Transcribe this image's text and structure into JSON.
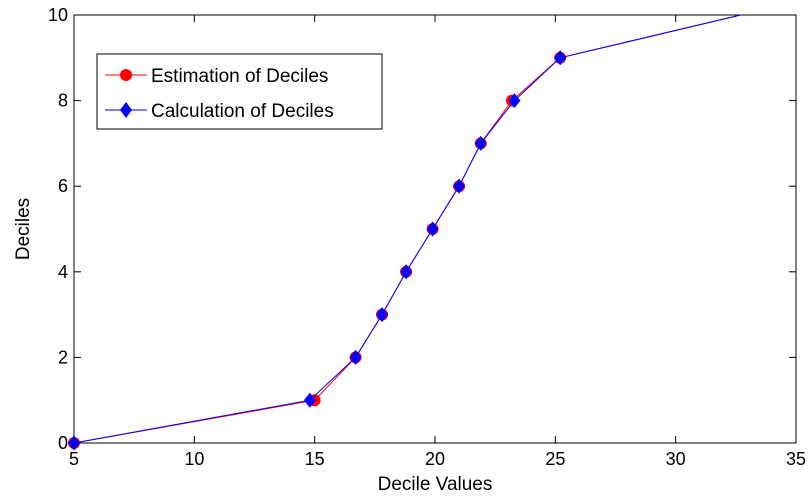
{
  "chart_data": {
    "type": "line",
    "title": "",
    "xlabel": "Decile Values",
    "ylabel": "Deciles",
    "xlim": [
      5,
      35
    ],
    "ylim": [
      0,
      10
    ],
    "xticks": [
      5,
      10,
      15,
      20,
      25,
      30,
      35
    ],
    "yticks": [
      0,
      2,
      4,
      6,
      8,
      10
    ],
    "grid": false,
    "legend_position": "top-left",
    "series": [
      {
        "name": "Estimation of Deciles",
        "marker": "circle",
        "color": "#ff0000",
        "x": [
          5.0,
          15.0,
          16.7,
          17.8,
          18.8,
          19.9,
          21.0,
          21.9,
          23.2,
          25.2,
          32.7
        ],
        "y": [
          0,
          1,
          2,
          3,
          4,
          5,
          6,
          7,
          8,
          9,
          10
        ]
      },
      {
        "name": "Calculation of Deciles",
        "marker": "diamond",
        "color": "#0000ff",
        "x": [
          5.0,
          14.8,
          16.7,
          17.8,
          18.8,
          19.9,
          21.0,
          21.9,
          23.3,
          25.2,
          32.7
        ],
        "y": [
          0,
          1,
          2,
          3,
          4,
          5,
          6,
          7,
          8,
          9,
          10
        ]
      }
    ]
  }
}
